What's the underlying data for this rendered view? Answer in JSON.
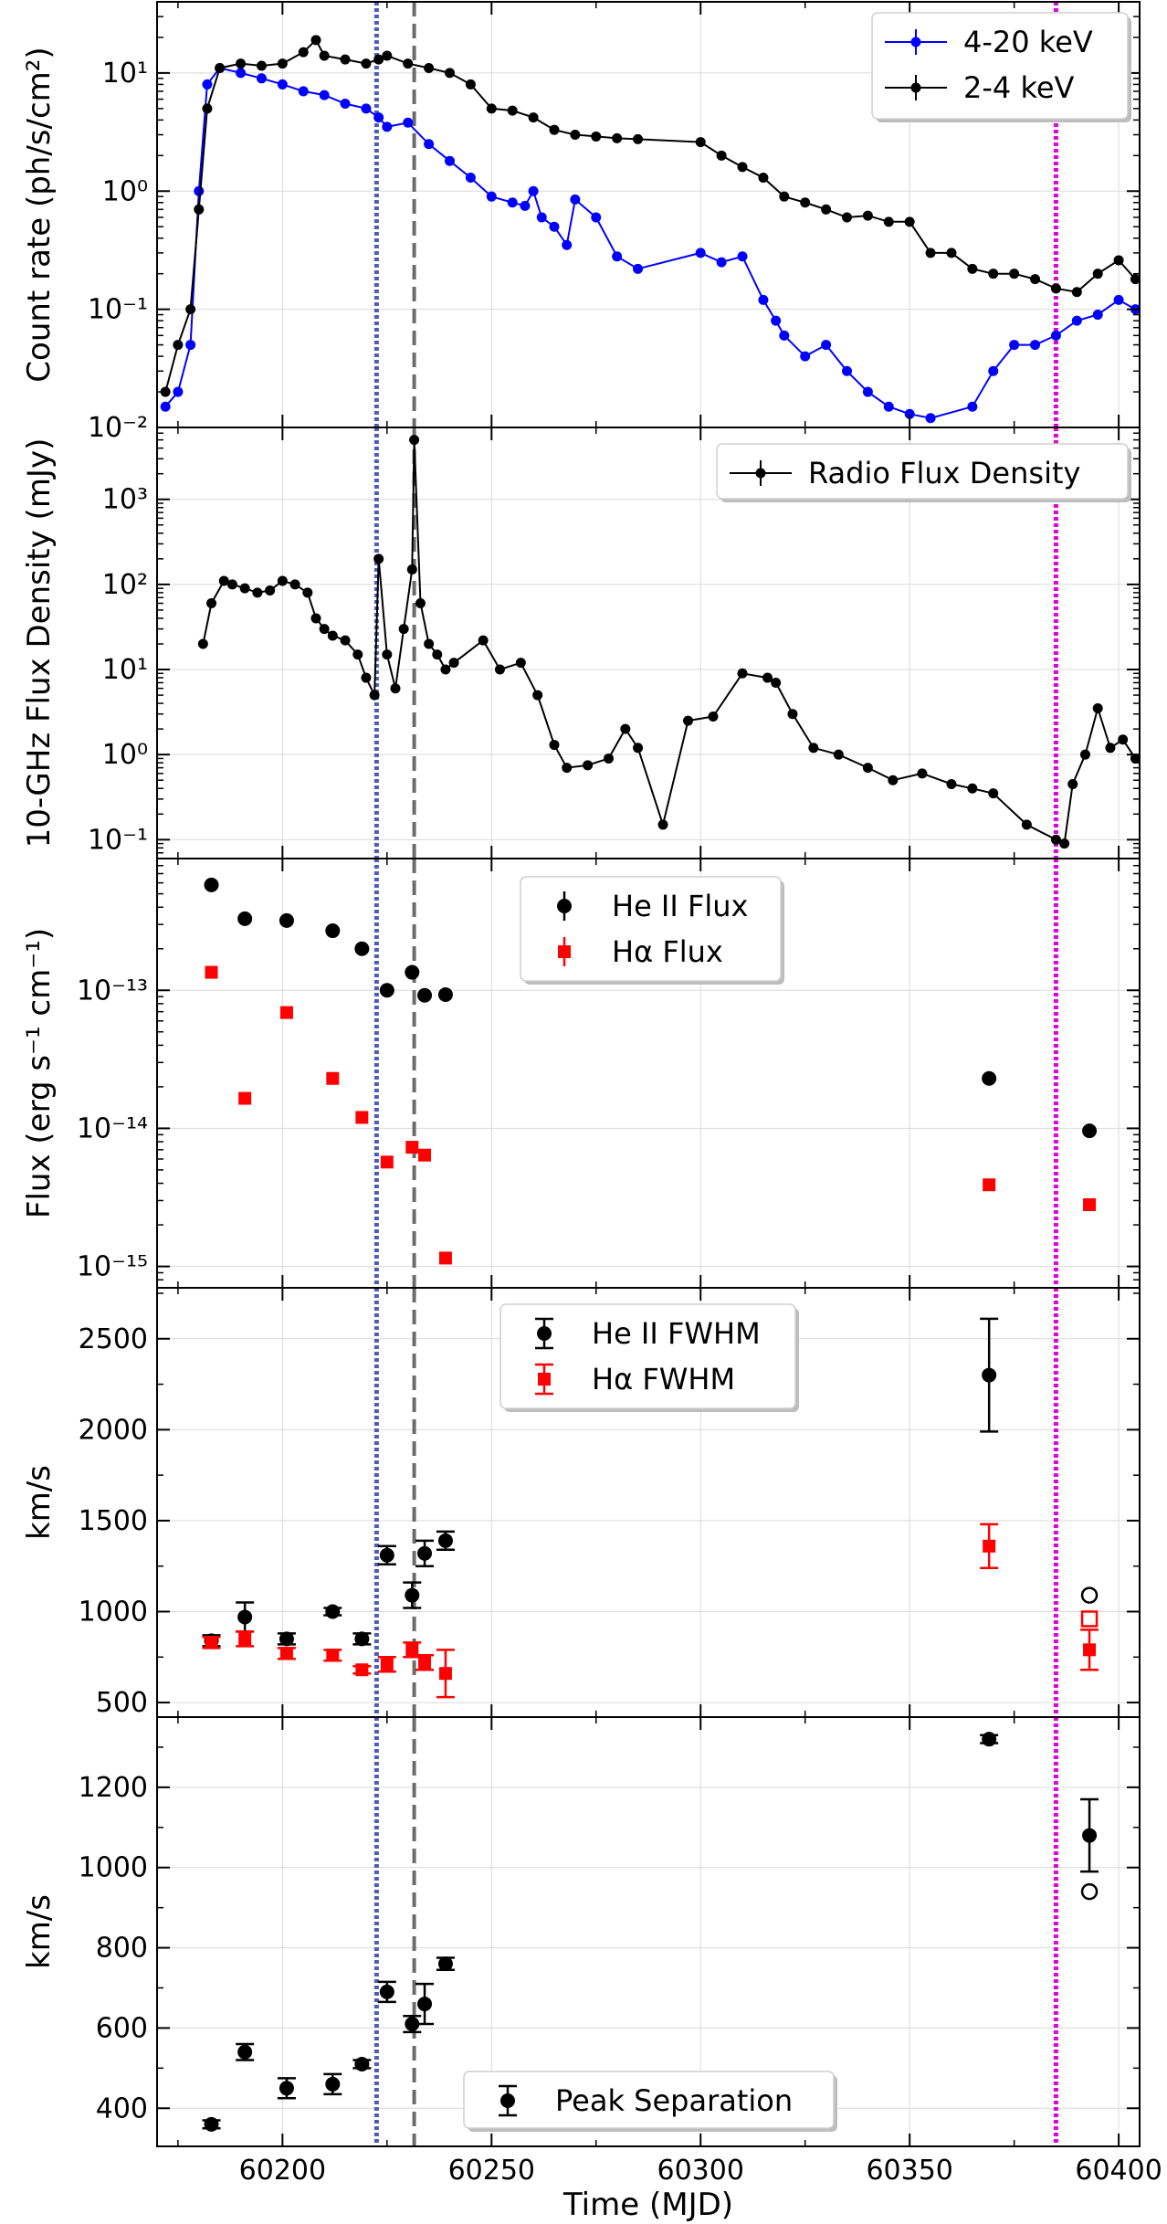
{
  "colors": {
    "blue": "#0000ff",
    "black": "#000000",
    "red": "#ff0000",
    "magenta": "#e000e0",
    "dash_blue": "#4a5fb5",
    "dash_grey": "#6b6b6b",
    "grid": "#d9d9d9"
  },
  "figure": {
    "xlabel": "Time (MJD)",
    "xlim": [
      60170,
      60405
    ],
    "x_ticks": [
      60200,
      60250,
      60300,
      60350,
      60400
    ],
    "vlines": [
      {
        "x": 60222.5,
        "style": "dotted",
        "color": "blue"
      },
      {
        "x": 60231.5,
        "style": "dashed",
        "color": "grey"
      },
      {
        "x": 60385,
        "style": "dotted",
        "color": "magenta"
      }
    ]
  },
  "chart_data": [
    {
      "type": "line",
      "panel": "xray",
      "ylabel": "Count rate (ph/s/cm²)",
      "yscale": "log",
      "ylim": [
        0.01,
        40
      ],
      "y_ticks": [
        0.01,
        0.1,
        1,
        10
      ],
      "y_tick_labels": [
        "10⁻²",
        "10⁻¹",
        "10⁰",
        "10¹"
      ],
      "legend": "top-right",
      "series": [
        {
          "name": "4-20 keV",
          "color": "blue",
          "x": [
            60172,
            60175,
            60178,
            60180,
            60182,
            60185,
            60190,
            60195,
            60200,
            60205,
            60210,
            60215,
            60220,
            60223,
            60225,
            60230,
            60235,
            60240,
            60245,
            60250,
            60255,
            60258,
            60260,
            60262,
            60265,
            60268,
            60270,
            60275,
            60280,
            60285,
            60300,
            60305,
            60310,
            60315,
            60318,
            60320,
            60325,
            60330,
            60335,
            60340,
            60345,
            60350,
            60355,
            60365,
            60370,
            60375,
            60380,
            60385,
            60390,
            60395,
            60400,
            60404
          ],
          "y": [
            0.015,
            0.02,
            0.05,
            1.0,
            8,
            11,
            10,
            9,
            8,
            7,
            6.5,
            5.5,
            5,
            4.2,
            3.5,
            3.8,
            2.5,
            1.8,
            1.3,
            0.9,
            0.8,
            0.75,
            1.0,
            0.6,
            0.5,
            0.35,
            0.85,
            0.6,
            0.28,
            0.22,
            0.3,
            0.25,
            0.28,
            0.12,
            0.08,
            0.06,
            0.04,
            0.05,
            0.03,
            0.02,
            0.015,
            0.013,
            0.012,
            0.015,
            0.03,
            0.05,
            0.05,
            0.06,
            0.08,
            0.09,
            0.12,
            0.1
          ]
        },
        {
          "name": "2-4 keV",
          "color": "black",
          "x": [
            60172,
            60175,
            60178,
            60180,
            60182,
            60185,
            60190,
            60195,
            60200,
            60205,
            60208,
            60210,
            60215,
            60220,
            60223,
            60225,
            60230,
            60235,
            60240,
            60245,
            60250,
            60255,
            60260,
            60265,
            60270,
            60275,
            60280,
            60285,
            60300,
            60305,
            60310,
            60315,
            60320,
            60325,
            60330,
            60335,
            60340,
            60345,
            60350,
            60355,
            60360,
            60365,
            60370,
            60375,
            60380,
            60385,
            60390,
            60395,
            60400,
            60404
          ],
          "y": [
            0.02,
            0.05,
            0.1,
            0.7,
            5,
            11,
            12,
            11.5,
            12,
            15,
            19,
            14,
            13,
            12,
            13,
            14,
            12,
            11,
            10,
            8,
            5,
            4.8,
            4.2,
            3.3,
            3.0,
            2.9,
            2.8,
            2.75,
            2.6,
            2.0,
            1.6,
            1.3,
            0.9,
            0.8,
            0.7,
            0.6,
            0.62,
            0.55,
            0.55,
            0.3,
            0.3,
            0.22,
            0.2,
            0.2,
            0.18,
            0.15,
            0.14,
            0.2,
            0.26,
            0.18
          ]
        }
      ]
    },
    {
      "type": "line",
      "panel": "radio",
      "ylabel": "10-GHz Flux Density (mJy)",
      "yscale": "log",
      "ylim": [
        0.06,
        7000
      ],
      "y_ticks": [
        0.1,
        1,
        10,
        100,
        1000
      ],
      "y_tick_labels": [
        "10⁻¹",
        "10⁰",
        "10¹",
        "10²",
        "10³"
      ],
      "legend": "top-right",
      "series": [
        {
          "name": "Radio Flux Density",
          "color": "black",
          "x": [
            60181,
            60183,
            60186,
            60188,
            60191,
            60194,
            60197,
            60200,
            60203,
            60206,
            60208,
            60210,
            60212,
            60215,
            60218,
            60220,
            60222,
            60223,
            60225,
            60227,
            60229,
            60231,
            60231.5,
            60233,
            60235,
            60237,
            60239,
            60241,
            60248,
            60252,
            60257,
            60261,
            60265,
            60268,
            60273,
            60278,
            60282,
            60285,
            60291,
            60297,
            60303,
            60310,
            60316,
            60318,
            60322,
            60327,
            60333,
            60340,
            60346,
            60353,
            60360,
            60365,
            60370,
            60378,
            60385,
            60387,
            60389,
            60392,
            60395,
            60398,
            60401,
            60404
          ],
          "y": [
            20,
            60,
            110,
            100,
            90,
            80,
            85,
            110,
            100,
            80,
            40,
            30,
            25,
            22,
            15,
            8,
            5,
            200,
            15,
            6,
            30,
            150,
            5000,
            60,
            20,
            15,
            10,
            12,
            22,
            10,
            12,
            5,
            1.3,
            0.7,
            0.75,
            0.9,
            2,
            1.2,
            0.15,
            2.5,
            2.8,
            9,
            8,
            7,
            3,
            1.2,
            1.0,
            0.7,
            0.5,
            0.6,
            0.45,
            0.4,
            0.35,
            0.15,
            0.1,
            0.09,
            0.45,
            1.0,
            3.5,
            1.2,
            1.5,
            0.9
          ]
        }
      ]
    },
    {
      "type": "scatter",
      "panel": "line-flux",
      "ylabel": "Flux (erg s⁻¹ cm⁻¹)",
      "yscale": "log",
      "ylim": [
        7e-16,
        9e-13
      ],
      "y_ticks": [
        1e-15,
        1e-14,
        1e-13
      ],
      "y_tick_labels": [
        "10⁻¹⁵",
        "10⁻¹⁴",
        "10⁻¹³"
      ],
      "legend": "top-center",
      "series": [
        {
          "name": "He II Flux",
          "color": "black",
          "marker": "circle",
          "x": [
            60183,
            60191,
            60201,
            60212,
            60219,
            60225,
            60231,
            60234,
            60239,
            60369,
            60393
          ],
          "y": [
            5.8e-13,
            3.3e-13,
            3.2e-13,
            2.7e-13,
            2e-13,
            1e-13,
            1.35e-13,
            9.2e-14,
            9.3e-14,
            2.3e-14,
            9.6e-15
          ]
        },
        {
          "name": "Hα Flux",
          "color": "red",
          "marker": "square",
          "x": [
            60183,
            60191,
            60201,
            60212,
            60219,
            60225,
            60231,
            60234,
            60239,
            60369,
            60393
          ],
          "y": [
            1.35e-13,
            1.65e-14,
            6.9e-14,
            2.3e-14,
            1.2e-14,
            5.7e-15,
            7.3e-15,
            6.4e-15,
            1.15e-15,
            3.9e-15,
            2.8e-15
          ]
        }
      ]
    },
    {
      "type": "scatter",
      "panel": "fwhm",
      "ylabel": "km/s",
      "ylim": [
        420,
        2780
      ],
      "y_ticks": [
        500,
        1000,
        1500,
        2000,
        2500
      ],
      "legend": "top-center",
      "series": [
        {
          "name": "He II FWHM",
          "color": "black",
          "marker": "circle",
          "x": [
            60183,
            60191,
            60201,
            60212,
            60219,
            60225,
            60231,
            60234,
            60239,
            60369
          ],
          "y": [
            840,
            970,
            850,
            1000,
            850,
            1310,
            1090,
            1320,
            1390,
            2300
          ],
          "err": [
            30,
            80,
            30,
            20,
            30,
            50,
            70,
            70,
            50,
            310
          ]
        },
        {
          "name": "Hα FWHM",
          "color": "red",
          "marker": "square",
          "x": [
            60183,
            60191,
            60201,
            60212,
            60219,
            60225,
            60231,
            60234,
            60239,
            60369,
            60393
          ],
          "y": [
            830,
            850,
            770,
            760,
            680,
            710,
            790,
            720,
            660,
            1360,
            790
          ],
          "err": [
            30,
            40,
            30,
            30,
            20,
            40,
            40,
            40,
            130,
            120,
            110
          ]
        },
        {
          "name": "",
          "color": "black",
          "marker": "open-circle",
          "x": [
            60393
          ],
          "y": [
            1090
          ],
          "err": [
            0
          ]
        },
        {
          "name": "",
          "color": "red",
          "marker": "open-square",
          "x": [
            60393
          ],
          "y": [
            960
          ],
          "err": [
            0
          ]
        }
      ]
    },
    {
      "type": "scatter",
      "panel": "peak-sep",
      "ylabel": "km/s",
      "ylim": [
        305,
        1375
      ],
      "y_ticks": [
        400,
        600,
        800,
        1000,
        1200
      ],
      "legend": "bottom-center",
      "series": [
        {
          "name": "Peak Separation",
          "color": "black",
          "marker": "circle",
          "x": [
            60183,
            60191,
            60201,
            60212,
            60219,
            60225,
            60231,
            60234,
            60239,
            60369,
            60393
          ],
          "y": [
            360,
            540,
            450,
            460,
            510,
            690,
            610,
            660,
            760,
            1320,
            1080
          ],
          "err": [
            10,
            20,
            25,
            25,
            10,
            25,
            20,
            50,
            15,
            10,
            90
          ]
        },
        {
          "name": "",
          "color": "black",
          "marker": "open-circle",
          "x": [
            60393
          ],
          "y": [
            940
          ],
          "err": [
            0
          ]
        }
      ]
    }
  ]
}
